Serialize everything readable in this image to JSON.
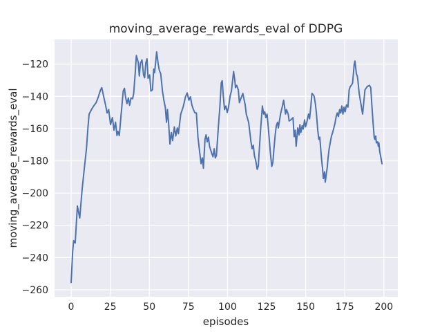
{
  "chart_data": {
    "type": "line",
    "title": "moving_average_rewards_eval of DDPG",
    "xlabel": "episodes",
    "ylabel": "moving_average_rewards_eval",
    "x_ticks": [
      0,
      25,
      50,
      75,
      100,
      125,
      150,
      175,
      200
    ],
    "y_ticks": [
      -120,
      -140,
      -160,
      -180,
      -200,
      -220,
      -240,
      -260
    ],
    "xlim": [
      -10.6,
      208.9
    ],
    "ylim": [
      -264.3,
      -104.7
    ],
    "grid": true,
    "legend_position": "none",
    "style": "seaborn-darkgrid",
    "line_color": "#4C72B0",
    "plot_bg_color": "#EAEAF2",
    "grid_color": "#FFFFFF",
    "text_color": "#262626",
    "series": [
      {
        "name": "moving_average_rewards_eval",
        "points": [
          [
            0,
            -255.5
          ],
          [
            1,
            -236
          ],
          [
            1.6,
            -229.5
          ],
          [
            2.6,
            -231
          ],
          [
            4,
            -208
          ],
          [
            5.5,
            -215.5
          ],
          [
            7,
            -198
          ],
          [
            8.5,
            -184
          ],
          [
            9.8,
            -172.5
          ],
          [
            10.7,
            -160
          ],
          [
            11.5,
            -151
          ],
          [
            13,
            -148.2
          ],
          [
            14.4,
            -146
          ],
          [
            16,
            -143.9
          ],
          [
            17.4,
            -140.3
          ],
          [
            18.8,
            -136
          ],
          [
            19.6,
            -134.6
          ],
          [
            21,
            -141
          ],
          [
            21.9,
            -144.9
          ],
          [
            23,
            -150.3
          ],
          [
            24,
            -148.2
          ],
          [
            25.2,
            -157.5
          ],
          [
            26.4,
            -153.2
          ],
          [
            27.4,
            -161
          ],
          [
            28.4,
            -156
          ],
          [
            29.3,
            -164.3
          ],
          [
            29.9,
            -161.7
          ],
          [
            30.8,
            -164.3
          ],
          [
            31.8,
            -153.2
          ],
          [
            33.3,
            -136.7
          ],
          [
            34.1,
            -135
          ],
          [
            34.8,
            -140.5
          ],
          [
            35.7,
            -144.5
          ],
          [
            36.6,
            -141
          ],
          [
            37.4,
            -145.5
          ],
          [
            38.3,
            -141
          ],
          [
            39.3,
            -141.5
          ],
          [
            40,
            -138.2
          ],
          [
            41,
            -125.3
          ],
          [
            41.7,
            -114.7
          ],
          [
            42.9,
            -118.8
          ],
          [
            43.6,
            -127.4
          ],
          [
            44.3,
            -119.5
          ],
          [
            45.3,
            -117.4
          ],
          [
            46.3,
            -126.7
          ],
          [
            47,
            -128.5
          ],
          [
            47.7,
            -119.5
          ],
          [
            48.5,
            -116.7
          ],
          [
            49.2,
            -128.8
          ],
          [
            50.2,
            -126.7
          ],
          [
            51,
            -136.7
          ],
          [
            52,
            -136
          ],
          [
            52.8,
            -123.1
          ],
          [
            53.4,
            -125.3
          ],
          [
            54.7,
            -112.4
          ],
          [
            55.6,
            -119.5
          ],
          [
            56.4,
            -123.9
          ],
          [
            57.3,
            -126
          ],
          [
            58.4,
            -136.7
          ],
          [
            59.3,
            -142.4
          ],
          [
            60.2,
            -146.7
          ],
          [
            61,
            -156.1
          ],
          [
            61.6,
            -148.2
          ],
          [
            62.3,
            -156.1
          ],
          [
            63.2,
            -169.6
          ],
          [
            64.1,
            -162.5
          ],
          [
            64.9,
            -167.5
          ],
          [
            66,
            -158.9
          ],
          [
            66.9,
            -164.6
          ],
          [
            67.9,
            -159.6
          ],
          [
            68.6,
            -163.2
          ],
          [
            70.1,
            -151
          ],
          [
            71.6,
            -146.7
          ],
          [
            72.3,
            -143.9
          ],
          [
            73.1,
            -140.3
          ],
          [
            74.2,
            -137.9
          ],
          [
            75.3,
            -142.4
          ],
          [
            76.3,
            -140.3
          ],
          [
            77.2,
            -145.3
          ],
          [
            78.2,
            -148.2
          ],
          [
            79.2,
            -150.3
          ],
          [
            80.1,
            -150.3
          ],
          [
            81.1,
            -165.3
          ],
          [
            82.2,
            -174.6
          ],
          [
            83.1,
            -181.8
          ],
          [
            83.9,
            -178.2
          ],
          [
            84.6,
            -184.6
          ],
          [
            85.6,
            -166.7
          ],
          [
            86.3,
            -163.9
          ],
          [
            87,
            -168.2
          ],
          [
            87.8,
            -165.3
          ],
          [
            88.5,
            -171
          ],
          [
            89.9,
            -175.3
          ],
          [
            90.7,
            -177.5
          ],
          [
            91.5,
            -172.5
          ],
          [
            92.2,
            -178.2
          ],
          [
            92.9,
            -176.8
          ],
          [
            94.1,
            -159.6
          ],
          [
            95.1,
            -146.7
          ],
          [
            96,
            -131.7
          ],
          [
            96.6,
            -130.3
          ],
          [
            97.3,
            -139.6
          ],
          [
            98.1,
            -148.2
          ],
          [
            99,
            -146
          ],
          [
            99.8,
            -150
          ],
          [
            100.6,
            -147
          ],
          [
            101.7,
            -139.6
          ],
          [
            102.5,
            -136.7
          ],
          [
            103.9,
            -124.6
          ],
          [
            104.7,
            -130.3
          ],
          [
            105.1,
            -134.6
          ],
          [
            105.9,
            -133.2
          ],
          [
            106.9,
            -136
          ],
          [
            107.6,
            -143.9
          ],
          [
            108.4,
            -141.7
          ],
          [
            109.8,
            -138.2
          ],
          [
            111.3,
            -145.3
          ],
          [
            112,
            -151
          ],
          [
            113.5,
            -156.1
          ],
          [
            114.3,
            -162.5
          ],
          [
            115,
            -168.2
          ],
          [
            115.7,
            -172.5
          ],
          [
            116.5,
            -170.3
          ],
          [
            117.2,
            -176.8
          ],
          [
            118,
            -179.6
          ],
          [
            119,
            -185.3
          ],
          [
            119.7,
            -183.2
          ],
          [
            120.4,
            -172
          ],
          [
            121.2,
            -160
          ],
          [
            122.3,
            -146
          ],
          [
            123.1,
            -151
          ],
          [
            123.8,
            -149.6
          ],
          [
            124.5,
            -153.2
          ],
          [
            125.3,
            -151
          ],
          [
            126.1,
            -159.6
          ],
          [
            126.7,
            -166.7
          ],
          [
            127.5,
            -176
          ],
          [
            128.3,
            -183.5
          ],
          [
            129,
            -181
          ],
          [
            129.7,
            -172.5
          ],
          [
            130.5,
            -163.9
          ],
          [
            131.2,
            -158.2
          ],
          [
            132,
            -156.1
          ],
          [
            132.5,
            -159.6
          ],
          [
            133.9,
            -151
          ],
          [
            135.3,
            -145.3
          ],
          [
            135.9,
            -142.4
          ],
          [
            137.1,
            -151
          ],
          [
            137.7,
            -148.2
          ],
          [
            138.8,
            -151
          ],
          [
            139.4,
            -155.3
          ],
          [
            140.5,
            -154.6
          ],
          [
            141.9,
            -153.2
          ],
          [
            142.6,
            -165
          ],
          [
            143.3,
            -161
          ],
          [
            143.9,
            -171
          ],
          [
            144.9,
            -159.6
          ],
          [
            145.7,
            -163.9
          ],
          [
            146.3,
            -157.5
          ],
          [
            146.9,
            -162.5
          ],
          [
            147.8,
            -158.2
          ],
          [
            148.4,
            -160.3
          ],
          [
            149.3,
            -154.6
          ],
          [
            149.9,
            -158.9
          ],
          [
            150.7,
            -156.1
          ],
          [
            151.8,
            -151
          ],
          [
            152.5,
            -153.9
          ],
          [
            153.3,
            -146
          ],
          [
            154,
            -138.2
          ],
          [
            154.7,
            -138.9
          ],
          [
            155.4,
            -140
          ],
          [
            156.2,
            -144.6
          ],
          [
            156.9,
            -151
          ],
          [
            157.7,
            -161
          ],
          [
            158.4,
            -166.7
          ],
          [
            159,
            -165.3
          ],
          [
            159.6,
            -172.5
          ],
          [
            160.2,
            -179.6
          ],
          [
            160.7,
            -183.9
          ],
          [
            161.3,
            -191
          ],
          [
            162.1,
            -186.8
          ],
          [
            162.5,
            -193.2
          ],
          [
            163.8,
            -183.9
          ],
          [
            164.3,
            -178.2
          ],
          [
            165,
            -172.5
          ],
          [
            165.8,
            -168.2
          ],
          [
            166.5,
            -164.6
          ],
          [
            167.2,
            -162.5
          ],
          [
            168,
            -159.6
          ],
          [
            168.7,
            -156.8
          ],
          [
            169.5,
            -152.5
          ],
          [
            170.2,
            -150.3
          ],
          [
            170.9,
            -152.5
          ],
          [
            171.7,
            -148.2
          ],
          [
            172.4,
            -150.3
          ],
          [
            173.1,
            -146
          ],
          [
            173.8,
            -151
          ],
          [
            174.5,
            -146.7
          ],
          [
            175.2,
            -149.6
          ],
          [
            176.1,
            -145.3
          ],
          [
            177,
            -146.7
          ],
          [
            177.8,
            -136
          ],
          [
            178.5,
            -133.9
          ],
          [
            179.2,
            -133.2
          ],
          [
            180,
            -131.7
          ],
          [
            181,
            -120.3
          ],
          [
            181.5,
            -118.1
          ],
          [
            182,
            -122.4
          ],
          [
            182.4,
            -126
          ],
          [
            183,
            -127.4
          ],
          [
            183.4,
            -130.3
          ],
          [
            184.2,
            -138.2
          ],
          [
            185.4,
            -145.3
          ],
          [
            186.4,
            -151
          ],
          [
            187.9,
            -136
          ],
          [
            189.4,
            -133.9
          ],
          [
            190.8,
            -133.2
          ],
          [
            191.6,
            -134.6
          ],
          [
            192.3,
            -145.3
          ],
          [
            193,
            -155.3
          ],
          [
            193.8,
            -165.3
          ],
          [
            194.2,
            -166.7
          ],
          [
            194.8,
            -164.6
          ],
          [
            195.2,
            -168.9
          ],
          [
            196,
            -168.2
          ],
          [
            196.4,
            -171
          ],
          [
            196.8,
            -168.9
          ],
          [
            197.3,
            -173.9
          ],
          [
            198.1,
            -178.2
          ],
          [
            198.8,
            -181.8
          ]
        ]
      }
    ]
  }
}
